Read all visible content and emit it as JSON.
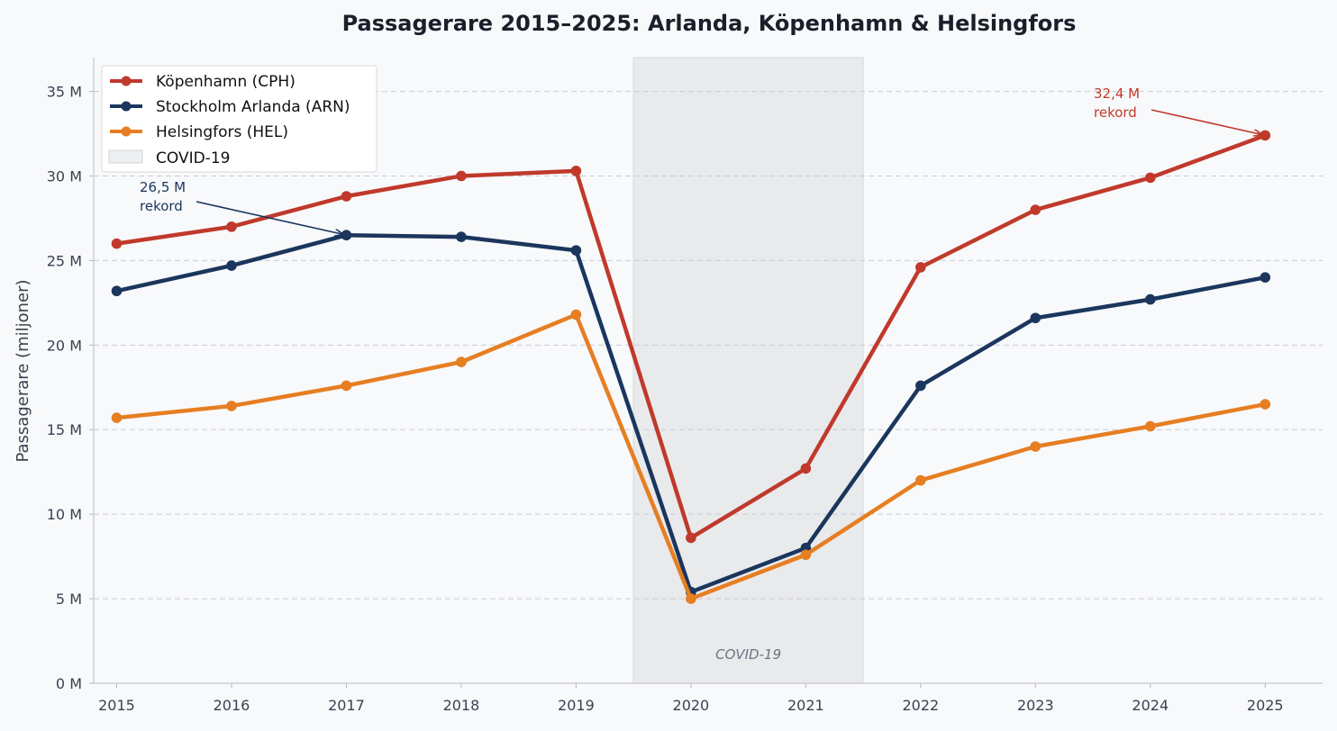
{
  "chart_data": {
    "type": "line",
    "title": "Passagerare 2015–2025: Arlanda, Köpenhamn & Helsingfors",
    "xlabel": "",
    "ylabel": "Passagerare (miljoner)",
    "x": [
      2015,
      2016,
      2017,
      2018,
      2019,
      2020,
      2021,
      2022,
      2023,
      2024,
      2025
    ],
    "x_tick_labels": [
      "2015",
      "2016",
      "2017",
      "2018",
      "2019",
      "2020",
      "2021",
      "2022",
      "2023",
      "2024",
      "2025"
    ],
    "xlim": [
      2014.8,
      2025.5
    ],
    "ylim": [
      0,
      37
    ],
    "y_ticks": [
      0,
      5,
      10,
      15,
      20,
      25,
      30,
      35
    ],
    "y_tick_labels": [
      "0 M",
      "5 M",
      "10 M",
      "15 M",
      "20 M",
      "25 M",
      "30 M",
      "35 M"
    ],
    "grid": "horizontal dashed",
    "legend_position": "top-left",
    "series": [
      {
        "name": "Köpenhamn (CPH)",
        "color": "#c0392b",
        "values": [
          26.0,
          27.0,
          28.8,
          30.0,
          30.3,
          8.6,
          12.7,
          24.6,
          28.0,
          29.9,
          32.4
        ]
      },
      {
        "name": "Stockholm Arlanda (ARN)",
        "color": "#1b365d",
        "values": [
          23.2,
          24.7,
          26.5,
          26.4,
          25.6,
          5.4,
          8.0,
          17.6,
          21.6,
          22.7,
          24.0
        ]
      },
      {
        "name": "Helsingfors (HEL)",
        "color": "#e67e22",
        "values": [
          15.7,
          16.4,
          17.6,
          19.0,
          21.8,
          5.0,
          7.6,
          12.0,
          14.0,
          15.2,
          16.5
        ]
      }
    ],
    "shaded_region": {
      "label": "COVID-19",
      "legend_label": "COVID-19",
      "x_start": 2019.5,
      "x_end": 2021.5,
      "color": "#e9eaec"
    },
    "annotations": [
      {
        "lines": [
          "26,5 M",
          "rekord"
        ],
        "series": "Stockholm Arlanda (ARN)",
        "x": 2017,
        "y": 26.5,
        "color": "#1b365d"
      },
      {
        "lines": [
          "32,4 M",
          "rekord"
        ],
        "series": "Köpenhamn (CPH)",
        "x": 2025,
        "y": 32.4,
        "color": "#c0392b"
      }
    ]
  }
}
